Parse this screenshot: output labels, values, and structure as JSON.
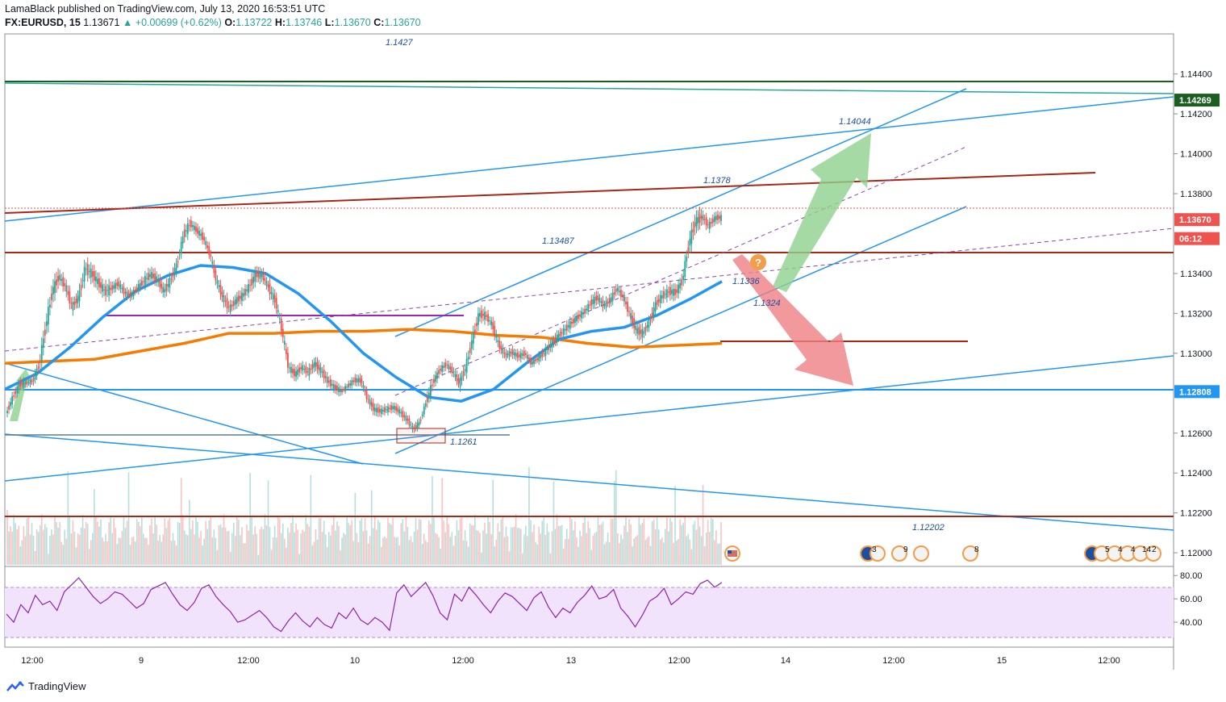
{
  "header": {
    "published": "LamaBlack published on TradingView.com, July 13, 2020 16:53:51 UTC",
    "symbol": "FX:EURUSD, 15",
    "last": "1.13671",
    "change": "+0.00699 (+0.62%)",
    "open_label": "O:",
    "open": "1.13722",
    "high_label": "H:",
    "high": "1.13746",
    "low_label": "L:",
    "low": "1.13670",
    "close_label": "C:",
    "close": "1.13670"
  },
  "brand": "TradingView",
  "chart_data": {
    "type": "candlestick",
    "symbol": "FX:EURUSD",
    "interval": "15",
    "ylim": [
      1.1196,
      1.1452
    ],
    "price_ticks": [
      "1.14400",
      "1.14200",
      "1.14000",
      "1.13800",
      "1.13400",
      "1.13200",
      "1.13000",
      "1.12600",
      "1.12400",
      "1.12200",
      "1.12000"
    ],
    "x_ticks": [
      "12:00",
      "9",
      "12:00",
      "10",
      "12:00",
      "13",
      "12:00",
      "14",
      "12:00",
      "15",
      "12:00"
    ],
    "price_tags": [
      {
        "label": "1.14269",
        "value": 1.14269,
        "color": "#1b5e20"
      },
      {
        "label": "1.13670",
        "value": 1.1367,
        "color": "#ef5350"
      },
      {
        "label": "06:12",
        "value": 1.13575,
        "color": "#ef5350"
      },
      {
        "label": "1.12808",
        "value": 1.12808,
        "color": "#2196f3"
      }
    ],
    "annotations": [
      "1.1427",
      "1.14044",
      "1.1378",
      "1.13487",
      "1.1336",
      "1.1324",
      "1.1261",
      "1.12202"
    ],
    "price_path": [
      [
        1.1276,
        1.1264
      ],
      [
        1.1284,
        1.1272
      ],
      [
        1.129,
        1.1279
      ],
      [
        1.1289,
        1.1281
      ],
      [
        1.1292,
        1.128
      ],
      [
        1.1305,
        1.1283
      ],
      [
        1.1325,
        1.1302
      ],
      [
        1.1342,
        1.132
      ],
      [
        1.1346,
        1.1331
      ],
      [
        1.1342,
        1.1325
      ],
      [
        1.1331,
        1.1316
      ],
      [
        1.1338,
        1.1318
      ],
      [
        1.1352,
        1.1333
      ],
      [
        1.1349,
        1.1331
      ],
      [
        1.1344,
        1.1327
      ],
      [
        1.134,
        1.1322
      ],
      [
        1.1338,
        1.1327
      ],
      [
        1.1341,
        1.1329
      ],
      [
        1.1336,
        1.1325
      ],
      [
        1.1334,
        1.1324
      ],
      [
        1.1339,
        1.1327
      ],
      [
        1.1344,
        1.1329
      ],
      [
        1.1347,
        1.1332
      ],
      [
        1.1344,
        1.133
      ],
      [
        1.1339,
        1.1323
      ],
      [
        1.1344,
        1.1329
      ],
      [
        1.1352,
        1.1337
      ],
      [
        1.1368,
        1.1351
      ],
      [
        1.1371,
        1.1359
      ],
      [
        1.1368,
        1.1355
      ],
      [
        1.1364,
        1.1352
      ],
      [
        1.1357,
        1.1343
      ],
      [
        1.1344,
        1.1329
      ],
      [
        1.1336,
        1.132
      ],
      [
        1.1329,
        1.1316
      ],
      [
        1.1334,
        1.1319
      ],
      [
        1.1336,
        1.1322
      ],
      [
        1.1342,
        1.1325
      ],
      [
        1.1347,
        1.1332
      ],
      [
        1.1345,
        1.1333
      ],
      [
        1.1341,
        1.1324
      ],
      [
        1.1334,
        1.1318
      ],
      [
        1.132,
        1.1303
      ],
      [
        1.13,
        1.1286
      ],
      [
        1.1296,
        1.1283
      ],
      [
        1.1299,
        1.1287
      ],
      [
        1.1297,
        1.1284
      ],
      [
        1.1302,
        1.1288
      ],
      [
        1.1298,
        1.1284
      ],
      [
        1.1292,
        1.128
      ],
      [
        1.1289,
        1.1277
      ],
      [
        1.1285,
        1.1277
      ],
      [
        1.1288,
        1.1279
      ],
      [
        1.1292,
        1.1281
      ],
      [
        1.1292,
        1.1281
      ],
      [
        1.1284,
        1.1271
      ],
      [
        1.1278,
        1.1266
      ],
      [
        1.1276,
        1.1266
      ],
      [
        1.1277,
        1.1267
      ],
      [
        1.1278,
        1.1268
      ],
      [
        1.1276,
        1.1265
      ],
      [
        1.1272,
        1.1262
      ],
      [
        1.1267,
        1.1257
      ],
      [
        1.127,
        1.1261
      ],
      [
        1.1284,
        1.1268
      ],
      [
        1.1292,
        1.1279
      ],
      [
        1.1297,
        1.1286
      ],
      [
        1.13,
        1.1289
      ],
      [
        1.1297,
        1.1285
      ],
      [
        1.1292,
        1.1278
      ],
      [
        1.1302,
        1.1284
      ],
      [
        1.1316,
        1.1298
      ],
      [
        1.1327,
        1.1312
      ],
      [
        1.1325,
        1.1313
      ],
      [
        1.1322,
        1.1307
      ],
      [
        1.1311,
        1.1298
      ],
      [
        1.1304,
        1.1294
      ],
      [
        1.1306,
        1.1295
      ],
      [
        1.1304,
        1.1293
      ],
      [
        1.1305,
        1.1295
      ],
      [
        1.1299,
        1.1291
      ],
      [
        1.1303,
        1.1292
      ],
      [
        1.1307,
        1.1294
      ],
      [
        1.1311,
        1.1298
      ],
      [
        1.1314,
        1.1303
      ],
      [
        1.1318,
        1.1305
      ],
      [
        1.1321,
        1.1309
      ],
      [
        1.1324,
        1.1312
      ],
      [
        1.1326,
        1.1315
      ],
      [
        1.1332,
        1.1318
      ],
      [
        1.1334,
        1.1322
      ],
      [
        1.133,
        1.1318
      ],
      [
        1.1333,
        1.132
      ],
      [
        1.1338,
        1.1327
      ],
      [
        1.1335,
        1.1321
      ],
      [
        1.1328,
        1.1311
      ],
      [
        1.132,
        1.1303
      ],
      [
        1.1316,
        1.1304
      ],
      [
        1.1324,
        1.1308
      ],
      [
        1.1332,
        1.1318
      ],
      [
        1.1336,
        1.1322
      ],
      [
        1.1339,
        1.1323
      ],
      [
        1.1338,
        1.1323
      ],
      [
        1.1346,
        1.1327
      ],
      [
        1.1366,
        1.1344
      ],
      [
        1.1376,
        1.1356
      ],
      [
        1.1375,
        1.1362
      ],
      [
        1.137,
        1.1358
      ],
      [
        1.1374,
        1.1362
      ]
    ],
    "ma_blue_55": [
      1.1282,
      1.129,
      1.1303,
      1.1318,
      1.1331,
      1.1339,
      1.1344,
      1.1343,
      1.134,
      1.133,
      1.1316,
      1.13,
      1.1288,
      1.1278,
      1.1276,
      1.1282,
      1.1295,
      1.1307,
      1.1311,
      1.1313,
      1.1319,
      1.1327,
      1.1336
    ],
    "ma_orange_200": [
      1.1295,
      1.1296,
      1.1297,
      1.1301,
      1.1305,
      1.131,
      1.131,
      1.1311,
      1.1311,
      1.1312,
      1.1311,
      1.1309,
      1.1308,
      1.1305,
      1.1303,
      1.1304,
      1.1305
    ],
    "rsi": {
      "ticks": [
        "80.00",
        "60.00",
        "40.00"
      ],
      "ylim": [
        20,
        85
      ],
      "upper": 70,
      "lower": 30,
      "values": [
        47,
        40,
        55,
        48,
        63,
        55,
        58,
        50,
        66,
        72,
        78,
        70,
        62,
        56,
        60,
        66,
        64,
        58,
        52,
        56,
        68,
        71,
        74,
        64,
        55,
        50,
        57,
        69,
        72,
        62,
        55,
        49,
        40,
        42,
        46,
        50,
        44,
        36,
        32,
        41,
        48,
        41,
        36,
        44,
        38,
        35,
        48,
        43,
        52,
        42,
        38,
        44,
        40,
        33,
        65,
        72,
        62,
        68,
        74,
        63,
        48,
        42,
        64,
        58,
        70,
        63,
        55,
        48,
        58,
        65,
        62,
        56,
        50,
        61,
        66,
        53,
        44,
        52,
        48,
        57,
        63,
        71,
        60,
        62,
        68,
        52,
        45,
        36,
        46,
        58,
        62,
        69,
        55,
        60,
        66,
        64,
        73,
        76,
        70,
        74
      ]
    }
  }
}
